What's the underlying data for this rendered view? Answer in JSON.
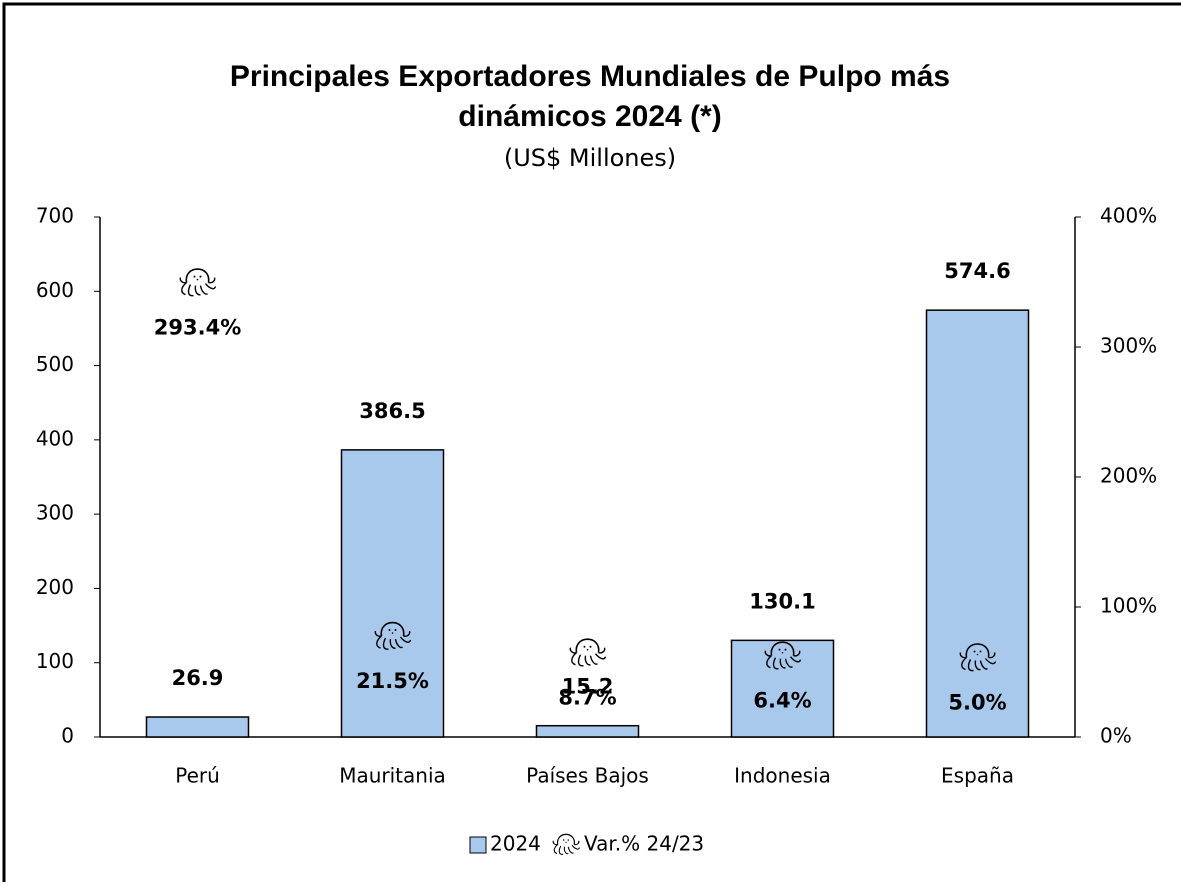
{
  "chart_data": {
    "type": "bar",
    "title": [
      "Principales Exportadores Mundiales de Pulpo más",
      "dinámicos 2024 (*)"
    ],
    "subtitle": "(US$ Millones)",
    "categories": [
      "Perú",
      "Mauritania",
      "Países Bajos",
      "Indonesia",
      "España"
    ],
    "series": [
      {
        "name": "2024",
        "color": "#a9c9ec",
        "values": [
          26.9,
          386.5,
          15.2,
          130.1,
          574.6
        ]
      },
      {
        "name": "Var.% 24/23",
        "axis": "y2",
        "marker": "octopus",
        "color": "#000000",
        "values": [
          293.4,
          21.5,
          8.7,
          6.4,
          5.0
        ],
        "value_labels": [
          "293.4%",
          "21.5%",
          "8.7%",
          "6.4%",
          "5.0%"
        ]
      }
    ],
    "ylim": [
      0,
      700
    ],
    "yticks": [
      0,
      100,
      200,
      300,
      400,
      500,
      600,
      700
    ],
    "y2lim": [
      0,
      400
    ],
    "y2ticks": [
      {
        "value": 0,
        "label": "0%"
      },
      {
        "value": 100,
        "label": "100%"
      },
      {
        "value": 200,
        "label": "200%"
      },
      {
        "value": 300,
        "label": "300%"
      },
      {
        "value": 400,
        "label": "400%"
      }
    ],
    "legend": "bottom",
    "grid": false
  }
}
